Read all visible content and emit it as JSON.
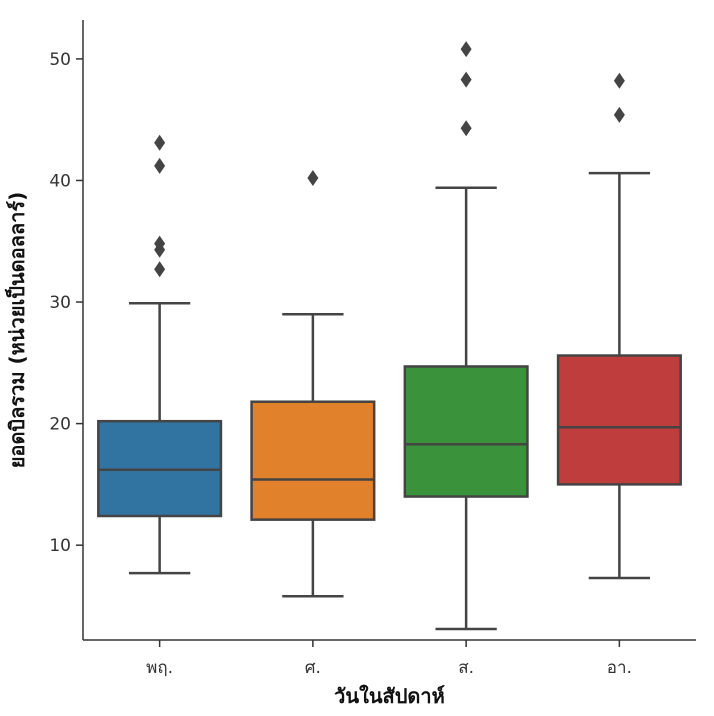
{
  "chart_data": {
    "type": "box",
    "xlabel": "วันในสัปดาห์",
    "ylabel": "ยอดบิลรวม (หน่วยเป็นดอลลาร์)",
    "ylim": [
      2.2,
      53.2
    ],
    "yticks": [
      10,
      20,
      30,
      40,
      50
    ],
    "grid": false,
    "categories": [
      "พฤ.",
      "ศ.",
      "ส.",
      "อา."
    ],
    "colors": [
      "#3274a1",
      "#e1812c",
      "#3a923a",
      "#c03d3e"
    ],
    "boxes": [
      {
        "category": "พฤ.",
        "whisker_low": 7.7,
        "q1": 12.4,
        "median": 16.2,
        "q3": 20.2,
        "whisker_high": 29.9,
        "outliers": [
          32.7,
          34.3,
          34.8,
          41.2,
          43.1
        ]
      },
      {
        "category": "ศ.",
        "whisker_low": 5.8,
        "q1": 12.1,
        "median": 15.4,
        "q3": 21.8,
        "whisker_high": 29.0,
        "outliers": [
          40.2
        ]
      },
      {
        "category": "ส.",
        "whisker_low": 3.1,
        "q1": 14.0,
        "median": 18.3,
        "q3": 24.7,
        "whisker_high": 39.4,
        "outliers": [
          44.3,
          48.3,
          50.8
        ]
      },
      {
        "category": "อา.",
        "whisker_low": 7.3,
        "q1": 15.0,
        "median": 19.7,
        "q3": 25.6,
        "whisker_high": 40.6,
        "outliers": [
          45.4,
          48.2
        ]
      }
    ]
  }
}
